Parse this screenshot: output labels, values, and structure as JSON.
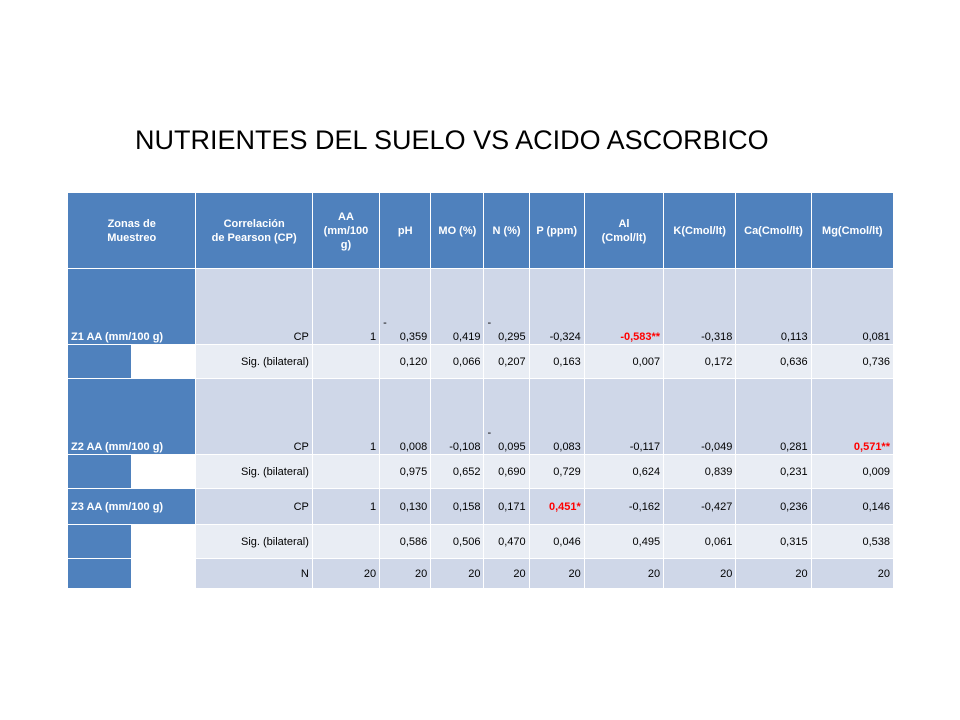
{
  "title": "NUTRIENTES DEL SUELO VS ACIDO ASCORBICO",
  "colors": {
    "header_blue": "#4f81bd",
    "row_dark": "#cfd7e8",
    "row_light": "#e9edf4",
    "significant_red": "#ff0000"
  },
  "headers": {
    "zonas": [
      "Zonas de",
      "Muestreo"
    ],
    "correlacion": [
      "Correlación",
      "de Pearson (CP)"
    ],
    "aa": [
      "AA",
      "(mm/100",
      "g)"
    ],
    "ph": "pH",
    "mo": "MO (%)",
    "n": "N (%)",
    "p": "P (ppm)",
    "al": [
      "Al",
      "(Cmol/lt)"
    ],
    "k": "K(Cmol/lt)",
    "ca": "Ca(Cmol/lt)",
    "mg": "Mg(Cmol/lt)"
  },
  "rows": {
    "z1": {
      "zone": "Z1    AA (mm/100 g)",
      "cp": {
        "label": "CP",
        "aa": "1",
        "ph_sign": "-",
        "ph": "0,359",
        "mo": "0,419",
        "n_sign": "-",
        "n": "0,295",
        "p": "-0,324",
        "al": "-0,583**",
        "k": "-0,318",
        "ca": "0,113",
        "mg": "0,081"
      },
      "sig": {
        "label": "Sig. (bilateral)",
        "ph": "0,120",
        "mo": "0,066",
        "n": "0,207",
        "p": "0,163",
        "al": "0,007",
        "k": "0,172",
        "ca": "0,636",
        "mg": "0,736"
      }
    },
    "z2": {
      "zone": "Z2    AA (mm/100 g)",
      "cp": {
        "label": "CP",
        "aa": "1",
        "ph": "0,008",
        "mo": "-0,108",
        "n_sign": "-",
        "n": "0,095",
        "p": "0,083",
        "al": "-0,117",
        "k": "-0,049",
        "ca": "0,281",
        "mg": "0,571**"
      },
      "sig": {
        "label": "Sig. (bilateral)",
        "ph": "0,975",
        "mo": "0,652",
        "n": "0,690",
        "p": "0,729",
        "al": "0,624",
        "k": "0,839",
        "ca": "0,231",
        "mg": "0,009"
      }
    },
    "z3": {
      "zone": "Z3    AA (mm/100 g)",
      "cp": {
        "label": "CP",
        "aa": "1",
        "ph": "0,130",
        "mo": "0,158",
        "n": "0,171",
        "p": "0,451*",
        "al": "-0,162",
        "k": "-0,427",
        "ca": "0,236",
        "mg": "0,146"
      },
      "sig": {
        "label": "Sig. (bilateral)",
        "ph": "0,586",
        "mo": "0,506",
        "n": "0,470",
        "p": "0,046",
        "al": "0,495",
        "k": "0,061",
        "ca": "0,315",
        "mg": "0,538"
      }
    },
    "n_row": {
      "label": "N",
      "aa": "20",
      "ph": "20",
      "mo": "20",
      "n": "20",
      "p": "20",
      "al": "20",
      "k": "20",
      "ca": "20",
      "mg": "20"
    }
  }
}
